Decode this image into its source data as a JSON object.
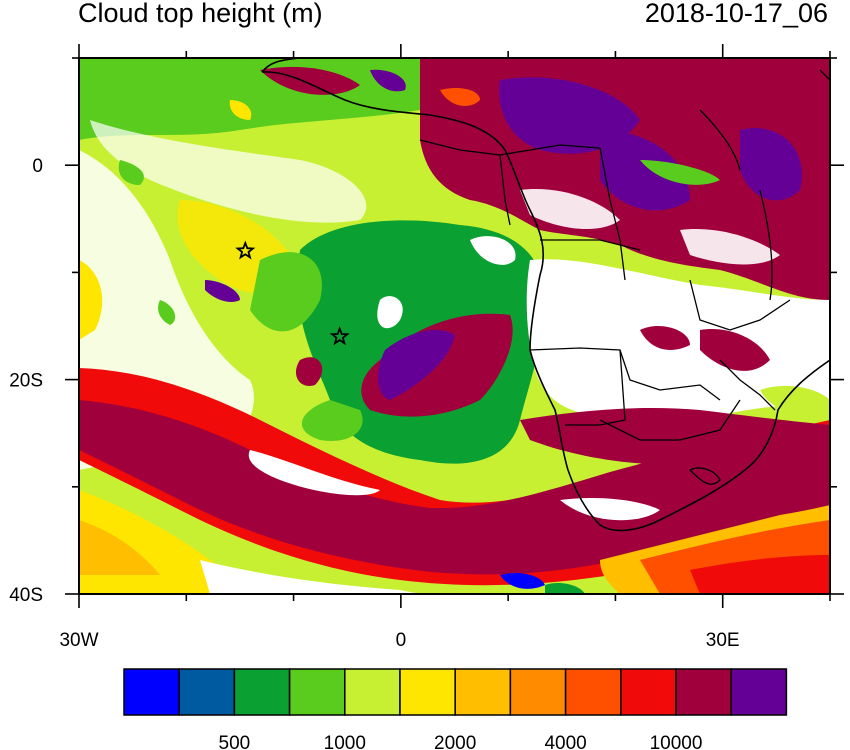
{
  "title": "Cloud top height (m)",
  "timestamp": "2018-10-17_06",
  "map": {
    "lon_range": [
      -30,
      40
    ],
    "lat_range": [
      -40,
      10
    ],
    "x_tick_labels": [
      {
        "lon": -30,
        "text": "30W"
      },
      {
        "lon": 0,
        "text": "0"
      },
      {
        "lon": 30,
        "text": "30E"
      }
    ],
    "y_tick_labels": [
      {
        "lat": 0,
        "text": "0"
      },
      {
        "lat": -20,
        "text": "20S"
      },
      {
        "lat": -40,
        "text": "40S"
      }
    ],
    "markers": [
      {
        "name": "star-marker-north",
        "lon": -14.5,
        "lat": -8
      },
      {
        "name": "star-marker-south",
        "lon": -5.7,
        "lat": -16
      }
    ]
  },
  "colorbar": {
    "colors": [
      "#0000ff",
      "#005aa0",
      "#0aa032",
      "#5acc1e",
      "#c8f032",
      "#ffe600",
      "#ffbe00",
      "#ff8c00",
      "#ff5000",
      "#f00a0a",
      "#a0003c",
      "#640096"
    ],
    "labels": [
      {
        "after_box": 2,
        "text": "500"
      },
      {
        "after_box": 4,
        "text": "1000"
      },
      {
        "after_box": 6,
        "text": "2000"
      },
      {
        "after_box": 8,
        "text": "4000"
      },
      {
        "after_box": 10,
        "text": "10000"
      }
    ]
  }
}
